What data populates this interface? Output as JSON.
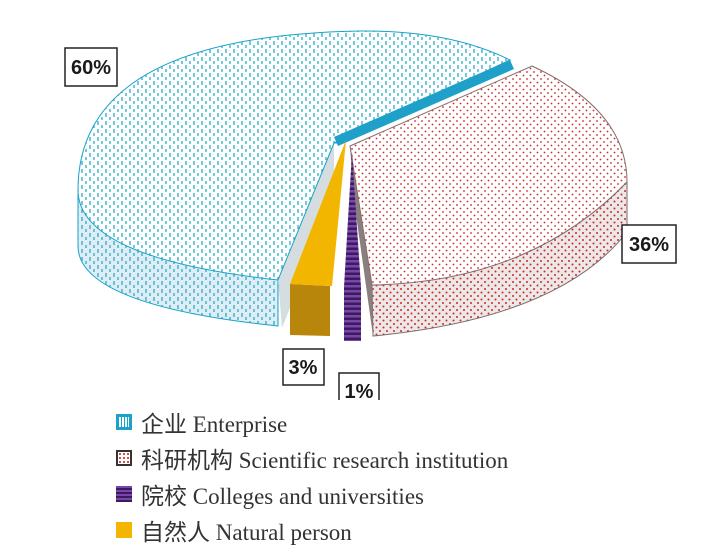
{
  "chart_data": {
    "type": "pie",
    "style": "3d-exploded",
    "slices": [
      {
        "label": "企业 Enterprise",
        "value": 60,
        "display": "60%",
        "color": "#1aa3c8",
        "pattern": "dashes"
      },
      {
        "label": "科研机构 Scientific research institution",
        "value": 36,
        "display": "36%",
        "color": "#cc2a2a",
        "pattern": "dots"
      },
      {
        "label": "院校 Colleges and universities",
        "value": 1,
        "display": "1%",
        "color": "#5b2c83",
        "pattern": "stripes"
      },
      {
        "label": "自然人 Natural person",
        "value": 3,
        "display": "3%",
        "color": "#f2b600",
        "pattern": "solid"
      }
    ],
    "legend_position": "bottom-left"
  }
}
